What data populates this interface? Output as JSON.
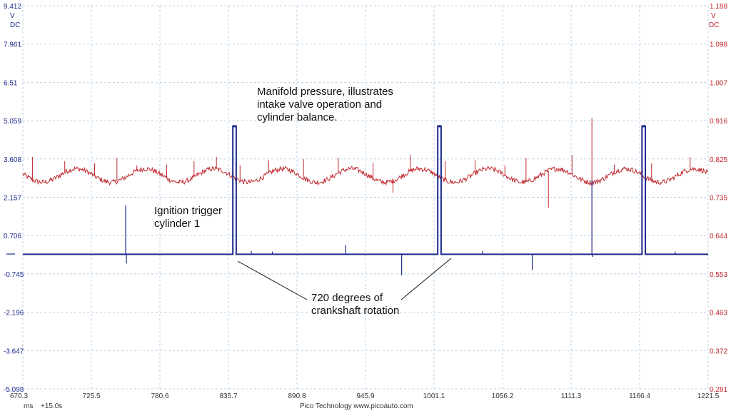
{
  "chart_data": {
    "type": "line",
    "x_unit": "ms",
    "x_offset_label": "+15.0s",
    "x_ticks": [
      "670.3",
      "725.5",
      "780.6",
      "835.7",
      "890.8",
      "945.9",
      "1001.1",
      "1056.2",
      "1111.3",
      "1166.4",
      "1221.5"
    ],
    "xlim": [
      670.3,
      1221.5
    ],
    "left_axis": {
      "unit_top": "V",
      "unit_bottom": "DC",
      "ticks": [
        "9.412",
        "7.961",
        "6.51",
        "5.059",
        "3.608",
        "2.157",
        "0.706",
        "-0.745",
        "-2.196",
        "-3.647",
        "-5.098"
      ],
      "ylim": [
        -5.098,
        9.412
      ]
    },
    "right_axis": {
      "unit_top": "V",
      "unit_bottom": "DC",
      "ticks": [
        "1.188",
        "1.098",
        "1.007",
        "0.916",
        "0.825",
        "0.735",
        "0.644",
        "0.553",
        "0.463",
        "0.372",
        "0.281"
      ],
      "ylim": [
        0.281,
        1.188
      ]
    },
    "grid": true,
    "series": [
      {
        "axis": "left",
        "color": "#1c2a8c",
        "baseline": 0.0,
        "pulses": [
          {
            "start": 839.2,
            "end": 841.9,
            "high": 4.85
          },
          {
            "start": 1004.0,
            "end": 1006.7,
            "high": 4.85
          },
          {
            "start": 1168.3,
            "end": 1171.0,
            "high": 4.85
          }
        ],
        "spikes": [
          {
            "x": 753.0,
            "y": 1.85
          },
          {
            "x": 753.6,
            "y": -0.35
          },
          {
            "x": 930.0,
            "y": 0.35
          },
          {
            "x": 975.0,
            "y": -0.8
          },
          {
            "x": 1080.0,
            "y": -0.6
          },
          {
            "x": 1128.0,
            "y": 2.8
          },
          {
            "x": 1128.6,
            "y": -0.1
          },
          {
            "x": 854.0,
            "y": 0.12
          },
          {
            "x": 871.0,
            "y": 0.1
          },
          {
            "x": 1040.0,
            "y": 0.12
          },
          {
            "x": 1195.0,
            "y": 0.1
          }
        ]
      },
      {
        "axis": "right",
        "color": "#c0252b",
        "base": 0.786,
        "amplitude": 0.016,
        "period_ms": 55.2,
        "phase_ms": 686.0,
        "noise": 0.006,
        "spikes": [
          {
            "x": 678.0,
            "y": 0.83
          },
          {
            "x": 704.0,
            "y": 0.82
          },
          {
            "x": 728.0,
            "y": 0.815
          },
          {
            "x": 746.0,
            "y": 0.828
          },
          {
            "x": 762.0,
            "y": 0.81
          },
          {
            "x": 786.0,
            "y": 0.812
          },
          {
            "x": 808.0,
            "y": 0.82
          },
          {
            "x": 826.0,
            "y": 0.83
          },
          {
            "x": 845.0,
            "y": 0.81
          },
          {
            "x": 868.0,
            "y": 0.822
          },
          {
            "x": 896.0,
            "y": 0.825
          },
          {
            "x": 924.0,
            "y": 0.828
          },
          {
            "x": 952.0,
            "y": 0.815
          },
          {
            "x": 968.0,
            "y": 0.745
          },
          {
            "x": 982.0,
            "y": 0.835
          },
          {
            "x": 1010.0,
            "y": 0.82
          },
          {
            "x": 1034.0,
            "y": 0.822
          },
          {
            "x": 1058.0,
            "y": 0.81
          },
          {
            "x": 1075.0,
            "y": 0.828
          },
          {
            "x": 1093.0,
            "y": 0.71
          },
          {
            "x": 1112.0,
            "y": 0.835
          },
          {
            "x": 1128.0,
            "y": 0.922
          },
          {
            "x": 1146.0,
            "y": 0.812
          },
          {
            "x": 1176.0,
            "y": 0.815
          },
          {
            "x": 1207.0,
            "y": 0.83
          }
        ]
      }
    ]
  },
  "annotations": {
    "manifold_line1": "Manifold pressure, illustrates",
    "manifold_line2": "intake valve operation and",
    "manifold_line3": "cylinder balance.",
    "ignition_line1": "Ignition trigger",
    "ignition_line2": "cylinder 1",
    "crank_line1": "720 degrees of",
    "crank_line2": "crankshaft rotation"
  },
  "footer": {
    "unit": "ms",
    "offset": "+15.0s",
    "credit": "Pico Technology   www.picoauto.com"
  }
}
